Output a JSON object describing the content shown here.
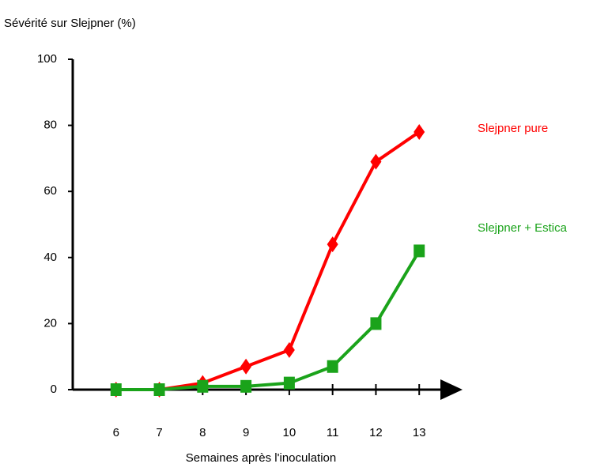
{
  "chart_data": {
    "type": "line",
    "y_label": "Sévérité sur Slejpner (%)",
    "x_label": "Semaines après l'inoculation",
    "x": [
      6,
      7,
      8,
      9,
      10,
      11,
      12,
      13
    ],
    "xlim": [
      5,
      14
    ],
    "xticks": [
      6,
      7,
      8,
      9,
      10,
      11,
      12,
      13
    ],
    "ylim": [
      0,
      100
    ],
    "yticks": [
      0,
      20,
      40,
      60,
      80,
      100
    ],
    "series": [
      {
        "name": "Slejpner pure",
        "color": "#ff0000",
        "marker": "diamond",
        "values": [
          0,
          0,
          2,
          7,
          12,
          44,
          69,
          78
        ]
      },
      {
        "name": "Slejpner + Estica",
        "color": "#1aa31a",
        "marker": "square",
        "values": [
          0,
          0,
          1,
          1,
          2,
          7,
          20,
          42
        ]
      }
    ]
  }
}
